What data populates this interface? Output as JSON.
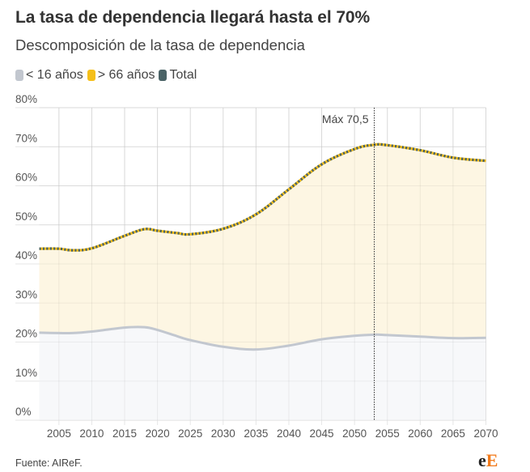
{
  "header": {
    "title": "La tasa de dependencia llegará hasta el 70%",
    "subtitle": "Descomposición de la tasa de dependencia"
  },
  "legend": [
    {
      "label": "< 16 años",
      "color": "#c2c7cf"
    },
    {
      "label": "> 66 años",
      "color": "#f5bf1a"
    },
    {
      "label": "Total",
      "color": "#4a6366"
    }
  ],
  "footer": {
    "source": "Fuente: AIReF.",
    "logo_e": "e",
    "logo_E": "E"
  },
  "chart_data": {
    "type": "area",
    "title": "La tasa de dependencia llegará hasta el 70%",
    "subtitle": "Descomposición de la tasa de dependencia",
    "xlabel": "",
    "ylabel": "",
    "xlim": [
      2002,
      2070
    ],
    "ylim": [
      0,
      80
    ],
    "y_ticks": [
      0,
      10,
      20,
      30,
      40,
      50,
      60,
      70,
      80
    ],
    "y_tick_labels": [
      "0%",
      "10%",
      "20%",
      "30%",
      "40%",
      "50%",
      "60%",
      "70%",
      "80%"
    ],
    "x_ticks": [
      2005,
      2010,
      2015,
      2020,
      2025,
      2030,
      2035,
      2040,
      2045,
      2050,
      2055,
      2060,
      2065,
      2070
    ],
    "x_tick_labels": [
      "2005",
      "2010",
      "2015",
      "2020",
      "2025",
      "2030",
      "2035",
      "2040",
      "2045",
      "2050",
      "2055",
      "2060",
      "2065",
      "2070"
    ],
    "grid": true,
    "legend_position": "top-left",
    "x": [
      2002,
      2005,
      2007,
      2010,
      2015,
      2018,
      2020,
      2023,
      2025,
      2030,
      2035,
      2040,
      2045,
      2050,
      2053,
      2055,
      2060,
      2065,
      2070
    ],
    "series": [
      {
        "name": "< 16 años",
        "color": "#c2c7cf",
        "fill": "#f7f8fa",
        "values": [
          22.4,
          22.3,
          22.3,
          22.7,
          23.7,
          23.8,
          23.1,
          21.5,
          20.5,
          18.8,
          18.1,
          19.1,
          20.7,
          21.6,
          21.9,
          21.8,
          21.4,
          21.0,
          21.1
        ]
      },
      {
        "name": "> 66 años",
        "color": "#f5bf1a",
        "fill": "#fdf6e3",
        "values": [
          21.5,
          21.6,
          21.2,
          21.3,
          23.5,
          25.1,
          25.4,
          26.4,
          27.1,
          30.2,
          34.6,
          40.0,
          44.8,
          47.8,
          48.6,
          48.6,
          47.7,
          46.2,
          45.3
        ]
      },
      {
        "name": "Total",
        "color": "#4a6366",
        "values": [
          43.9,
          43.9,
          43.5,
          44.0,
          47.2,
          48.9,
          48.5,
          47.9,
          47.6,
          49.0,
          52.7,
          59.1,
          65.5,
          69.4,
          70.5,
          70.4,
          69.1,
          67.2,
          66.4
        ]
      }
    ],
    "annotations": [
      {
        "text": "Máx 70,5",
        "x": 2053,
        "type": "vertical-line"
      }
    ]
  }
}
